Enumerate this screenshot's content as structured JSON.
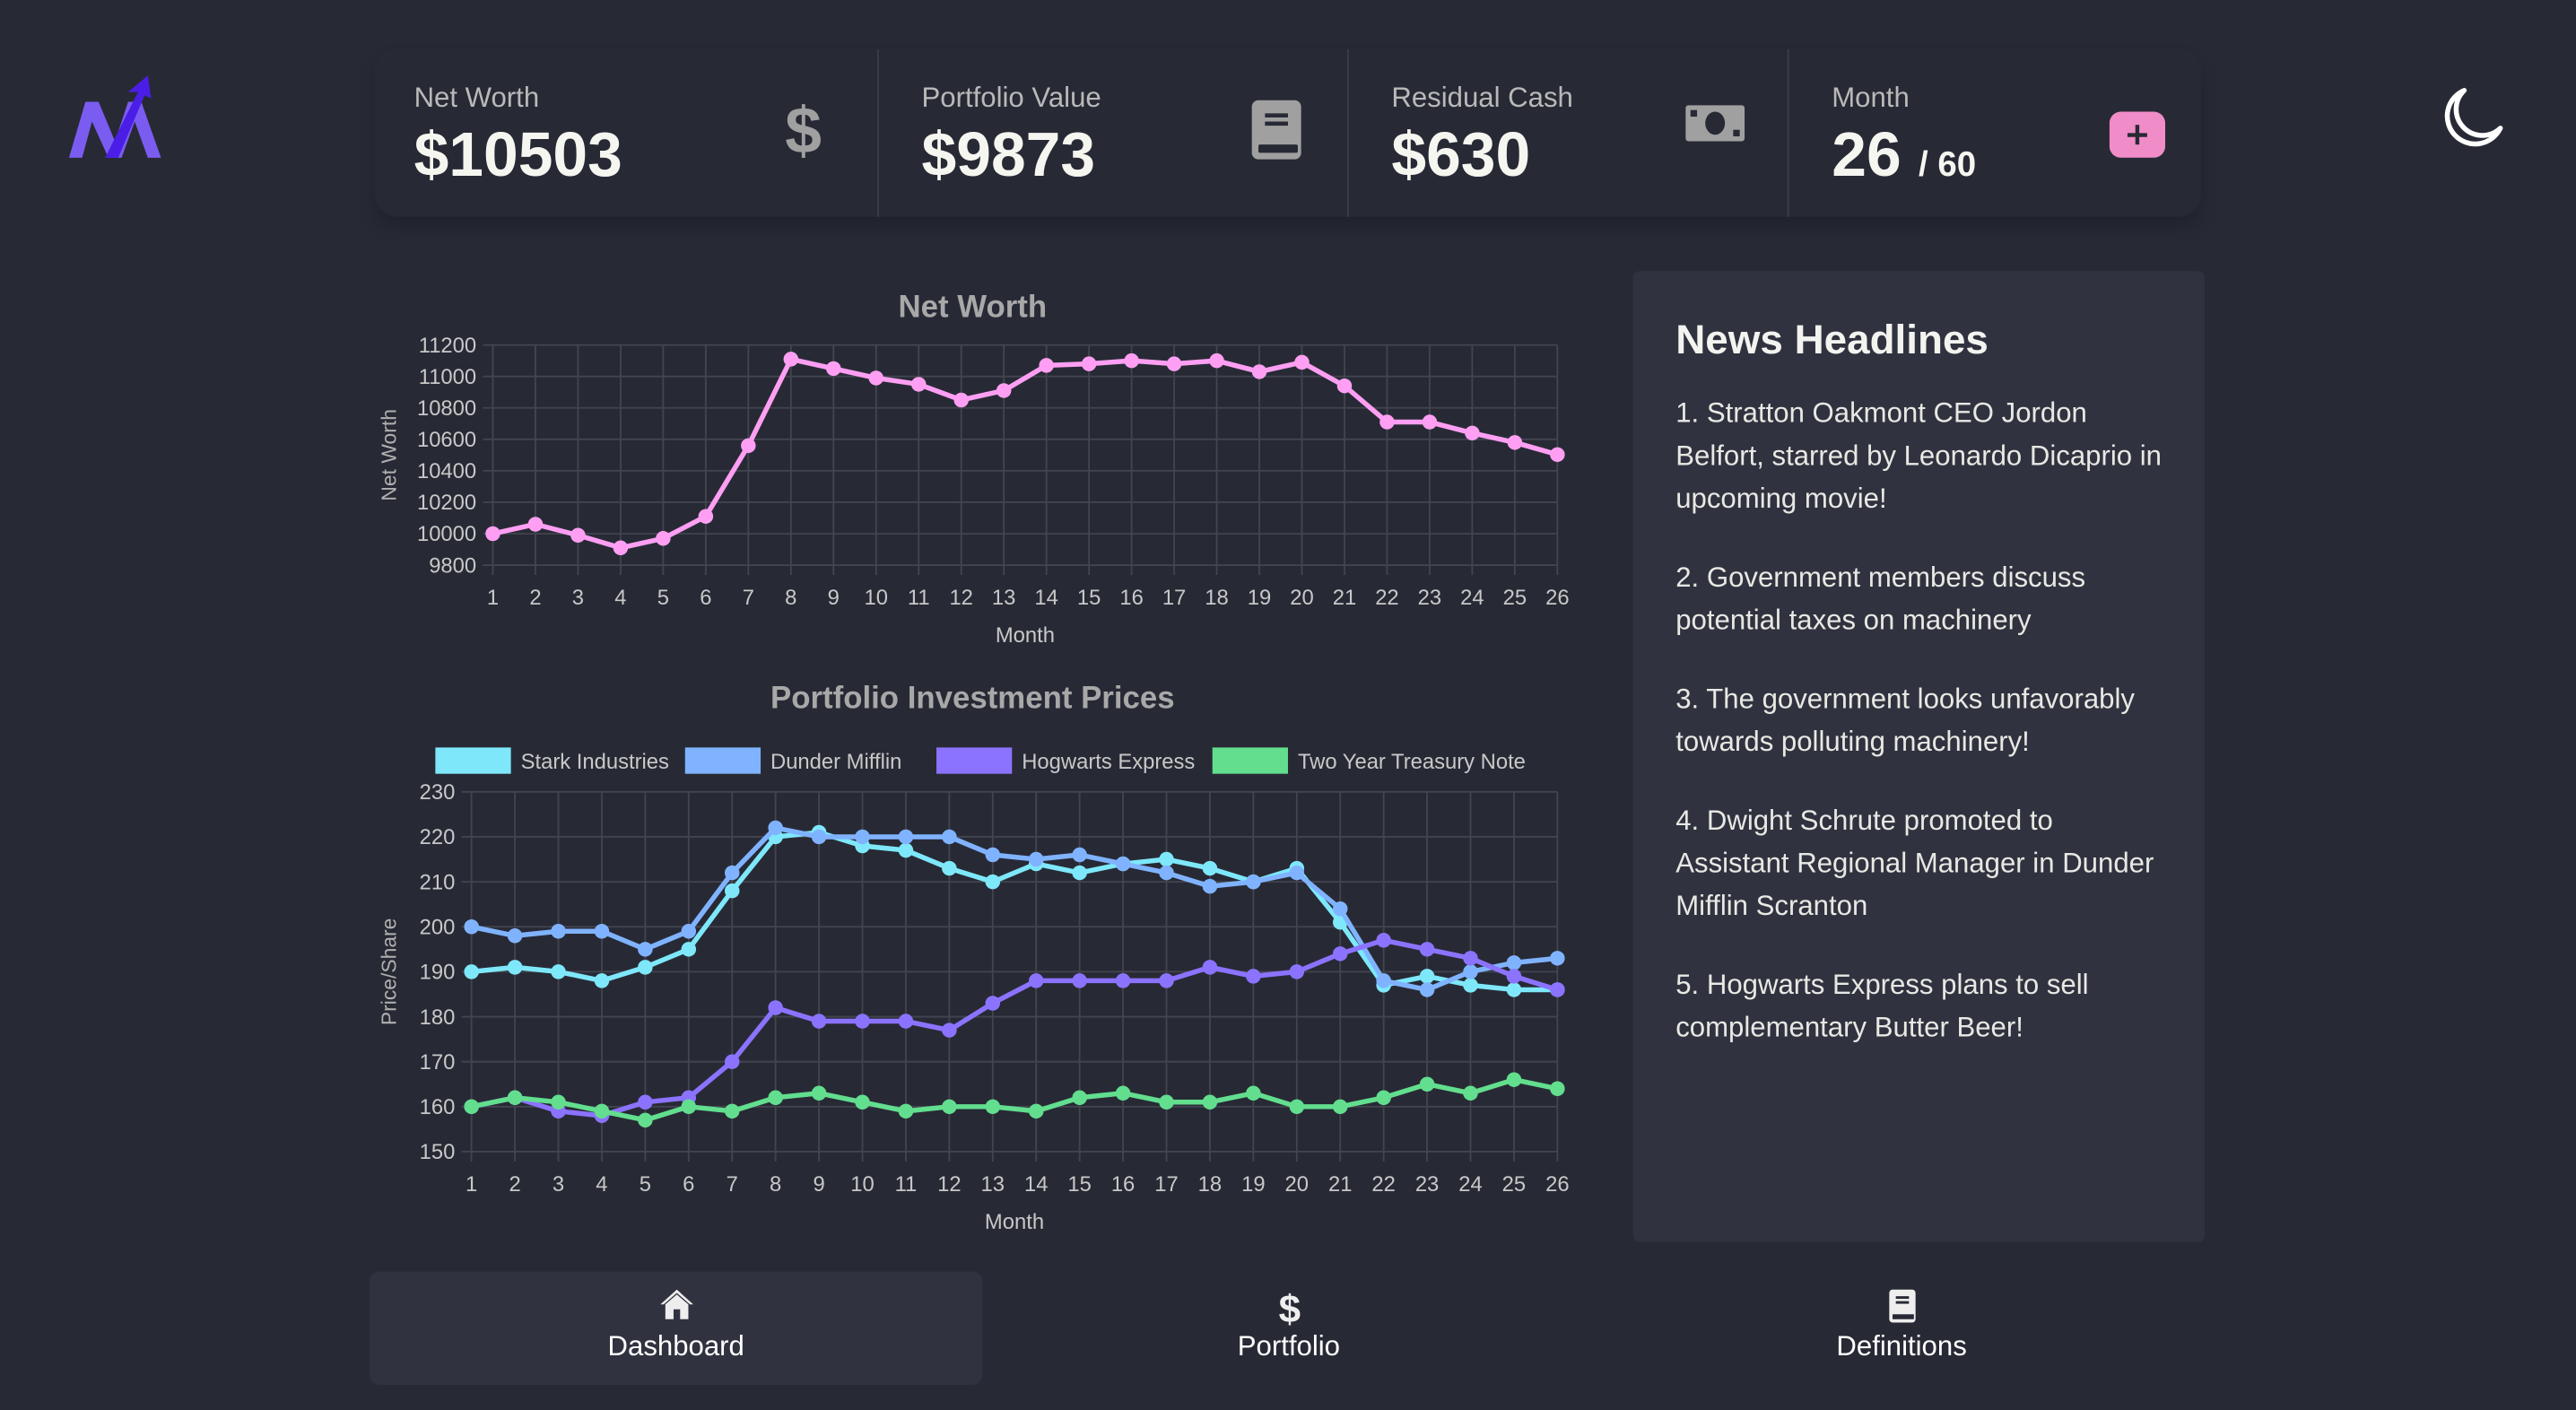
{
  "colors": {
    "background": "#272a35",
    "panel": "#30333f",
    "accent_pink": "#f08cc8",
    "net_worth_line": "#ff9ff3"
  },
  "logo": {
    "icon": "chart-logo-icon"
  },
  "stats": [
    {
      "label": "Net Worth",
      "value": "$10503",
      "icon": "dollar-icon"
    },
    {
      "label": "Portfolio Value",
      "value": "$9873",
      "icon": "book-icon"
    },
    {
      "label": "Residual Cash",
      "value": "$630",
      "icon": "money-bill-icon"
    },
    {
      "label": "Month",
      "value": "26",
      "suffix": "/ 60",
      "icon": "plus-button-icon"
    }
  ],
  "theme_toggle": {
    "icon": "moon-icon"
  },
  "chart_data": [
    {
      "type": "line",
      "title": "Net Worth",
      "xlabel": "Month",
      "ylabel": "Net Worth",
      "ylim": [
        9800,
        11200
      ],
      "yticks": [
        9800,
        10000,
        10200,
        10400,
        10600,
        10800,
        11000,
        11200
      ],
      "grid": true,
      "x": [
        1,
        2,
        3,
        4,
        5,
        6,
        7,
        8,
        9,
        10,
        11,
        12,
        13,
        14,
        15,
        16,
        17,
        18,
        19,
        20,
        21,
        22,
        23,
        24,
        25,
        26
      ],
      "series": [
        {
          "color": "#ff9ff3",
          "values": [
            10000,
            10060,
            9990,
            9910,
            9970,
            10110,
            10560,
            11110,
            11050,
            10990,
            10950,
            10850,
            10910,
            11070,
            11080,
            11100,
            11080,
            11100,
            11030,
            11090,
            10940,
            10710,
            10710,
            10640,
            10580,
            10503
          ]
        }
      ]
    },
    {
      "type": "line",
      "title": "Portfolio Investment Prices",
      "xlabel": "Month",
      "ylabel": "Price/Share",
      "ylim": [
        150,
        230
      ],
      "yticks": [
        150,
        160,
        170,
        180,
        190,
        200,
        210,
        220,
        230
      ],
      "grid": true,
      "legend": "top",
      "x": [
        1,
        2,
        3,
        4,
        5,
        6,
        7,
        8,
        9,
        10,
        11,
        12,
        13,
        14,
        15,
        16,
        17,
        18,
        19,
        20,
        21,
        22,
        23,
        24,
        25,
        26
      ],
      "series": [
        {
          "name": "Stark Industries",
          "color": "#7ee8fa",
          "values": [
            190,
            191,
            190,
            188,
            191,
            195,
            208,
            220,
            221,
            218,
            217,
            213,
            210,
            214,
            212,
            214,
            215,
            213,
            210,
            213,
            201,
            187,
            189,
            187,
            186,
            186
          ]
        },
        {
          "name": "Dunder Mifflin",
          "color": "#80b3ff",
          "values": [
            200,
            198,
            199,
            199,
            195,
            199,
            212,
            222,
            220,
            220,
            220,
            220,
            216,
            215,
            216,
            214,
            212,
            209,
            210,
            212,
            204,
            188,
            186,
            190,
            192,
            193
          ]
        },
        {
          "name": "Hogwarts Express",
          "color": "#8c73ff",
          "values": [
            160,
            162,
            159,
            158,
            161,
            162,
            170,
            182,
            179,
            179,
            179,
            177,
            183,
            188,
            188,
            188,
            188,
            191,
            189,
            190,
            194,
            197,
            195,
            193,
            189,
            186
          ]
        },
        {
          "name": "Two Year Treasury Note",
          "color": "#62de8e",
          "values": [
            160,
            162,
            161,
            159,
            157,
            160,
            159,
            162,
            163,
            161,
            159,
            160,
            160,
            159,
            162,
            163,
            161,
            161,
            163,
            160,
            160,
            162,
            165,
            163,
            166,
            164
          ]
        }
      ]
    }
  ],
  "news": {
    "title": "News Headlines",
    "items": [
      "1. Stratton Oakmont CEO Jordon Belfort, starred by Leonardo Dicaprio in upcoming movie!",
      "2. Government members discuss potential taxes on machinery",
      "3. The government looks unfavorably towards polluting machinery!",
      "4. Dwight Schrute promoted to Assistant Regional Manager in Dunder Mifflin Scranton",
      "5. Hogwarts Express plans to sell complementary Butter Beer!"
    ]
  },
  "nav": [
    {
      "label": "Dashboard",
      "icon": "home-icon",
      "active": true
    },
    {
      "label": "Portfolio",
      "icon": "dollar-icon"
    },
    {
      "label": "Definitions",
      "icon": "book-icon"
    }
  ]
}
